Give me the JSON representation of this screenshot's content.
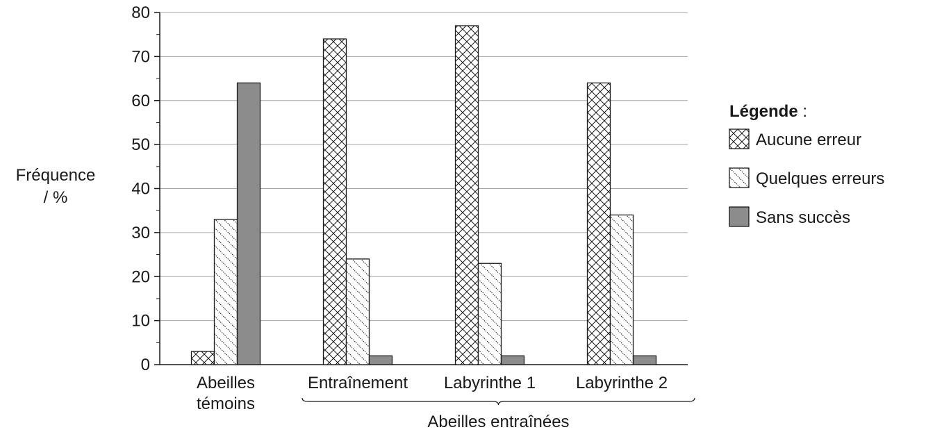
{
  "chart_data": {
    "type": "bar",
    "categories": [
      "Abeilles\ntémoins",
      "Entraînement",
      "Labyrinthe 1",
      "Labyrinthe 2"
    ],
    "series": [
      {
        "name": "Aucune erreur",
        "values": [
          3,
          74,
          77,
          64
        ],
        "pattern": "crosshatch",
        "color": "#ffffff"
      },
      {
        "name": "Quelques erreurs",
        "values": [
          33,
          24,
          23,
          34
        ],
        "pattern": "diagonal-dotted",
        "color": "#ffffff"
      },
      {
        "name": "Sans succès",
        "values": [
          64,
          2,
          2,
          2
        ],
        "pattern": "solid",
        "color": "#8c8c8c"
      }
    ],
    "ylabel": "Fréquence\n/ %",
    "ylim": [
      0,
      80
    ],
    "yticks": [
      0,
      10,
      20,
      30,
      40,
      50,
      60,
      70,
      80
    ],
    "grid": true,
    "group_label": "Abeilles entraînées",
    "legend": {
      "title": "Légende",
      "title_suffix": " :",
      "position": "right"
    }
  }
}
